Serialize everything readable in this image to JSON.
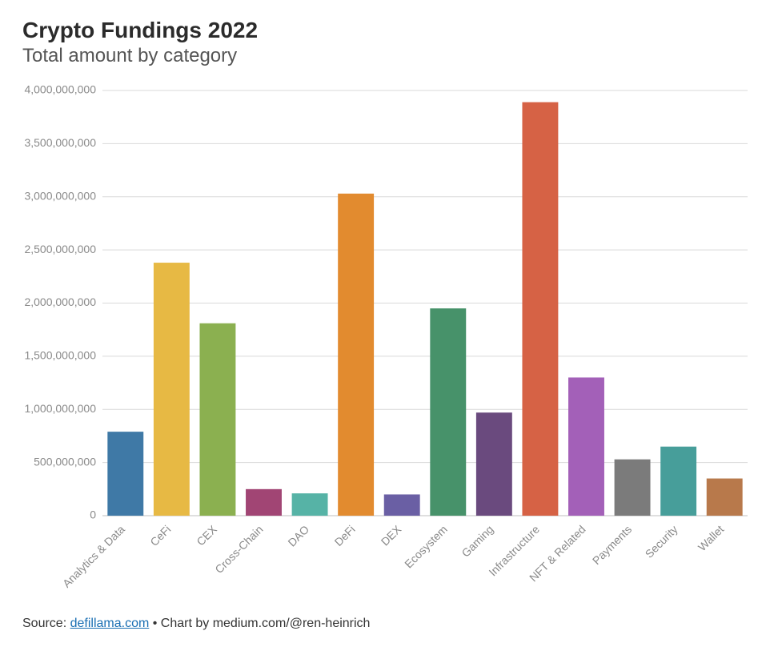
{
  "header": {
    "title": "Crypto Fundings 2022",
    "subtitle": "Total amount by category"
  },
  "chart": {
    "type": "bar",
    "background_color": "#ffffff",
    "grid_color": "#d9d9d9",
    "axis_color": "#bfbfbf",
    "tick_label_color": "#8a8a8a",
    "y": {
      "min": 0,
      "max": 4000000000,
      "ticks": [
        0,
        500000000,
        1000000000,
        1500000000,
        2000000000,
        2500000000,
        3000000000,
        3500000000,
        4000000000
      ]
    },
    "bar_width_ratio": 0.78,
    "categories": [
      "Analytics & Data",
      "CeFi",
      "CEX",
      "Cross-Chain",
      "DAO",
      "DeFi",
      "DEX",
      "Ecosystem",
      "Gaming",
      "Infrastructure",
      "NFT & Related",
      "Payments",
      "Security",
      "Wallet"
    ],
    "values": [
      790000000,
      2380000000,
      1810000000,
      250000000,
      210000000,
      3030000000,
      200000000,
      1950000000,
      970000000,
      3890000000,
      1300000000,
      530000000,
      650000000,
      350000000
    ],
    "bar_colors": [
      "#3f79a6",
      "#e7b944",
      "#8bb050",
      "#a14574",
      "#56b3a6",
      "#e28b2f",
      "#6a5fa4",
      "#47926a",
      "#6a4a7e",
      "#d66245",
      "#a360b8",
      "#7b7b7b",
      "#479e9a",
      "#b8794b"
    ],
    "title_fontsize": 28,
    "subtitle_fontsize": 24,
    "tick_fontsize": 14
  },
  "footer": {
    "prefix": "Source: ",
    "link_text": "defillama.com",
    "link_href": "#",
    "suffix": " • Chart by medium.com/@ren-heinrich"
  }
}
